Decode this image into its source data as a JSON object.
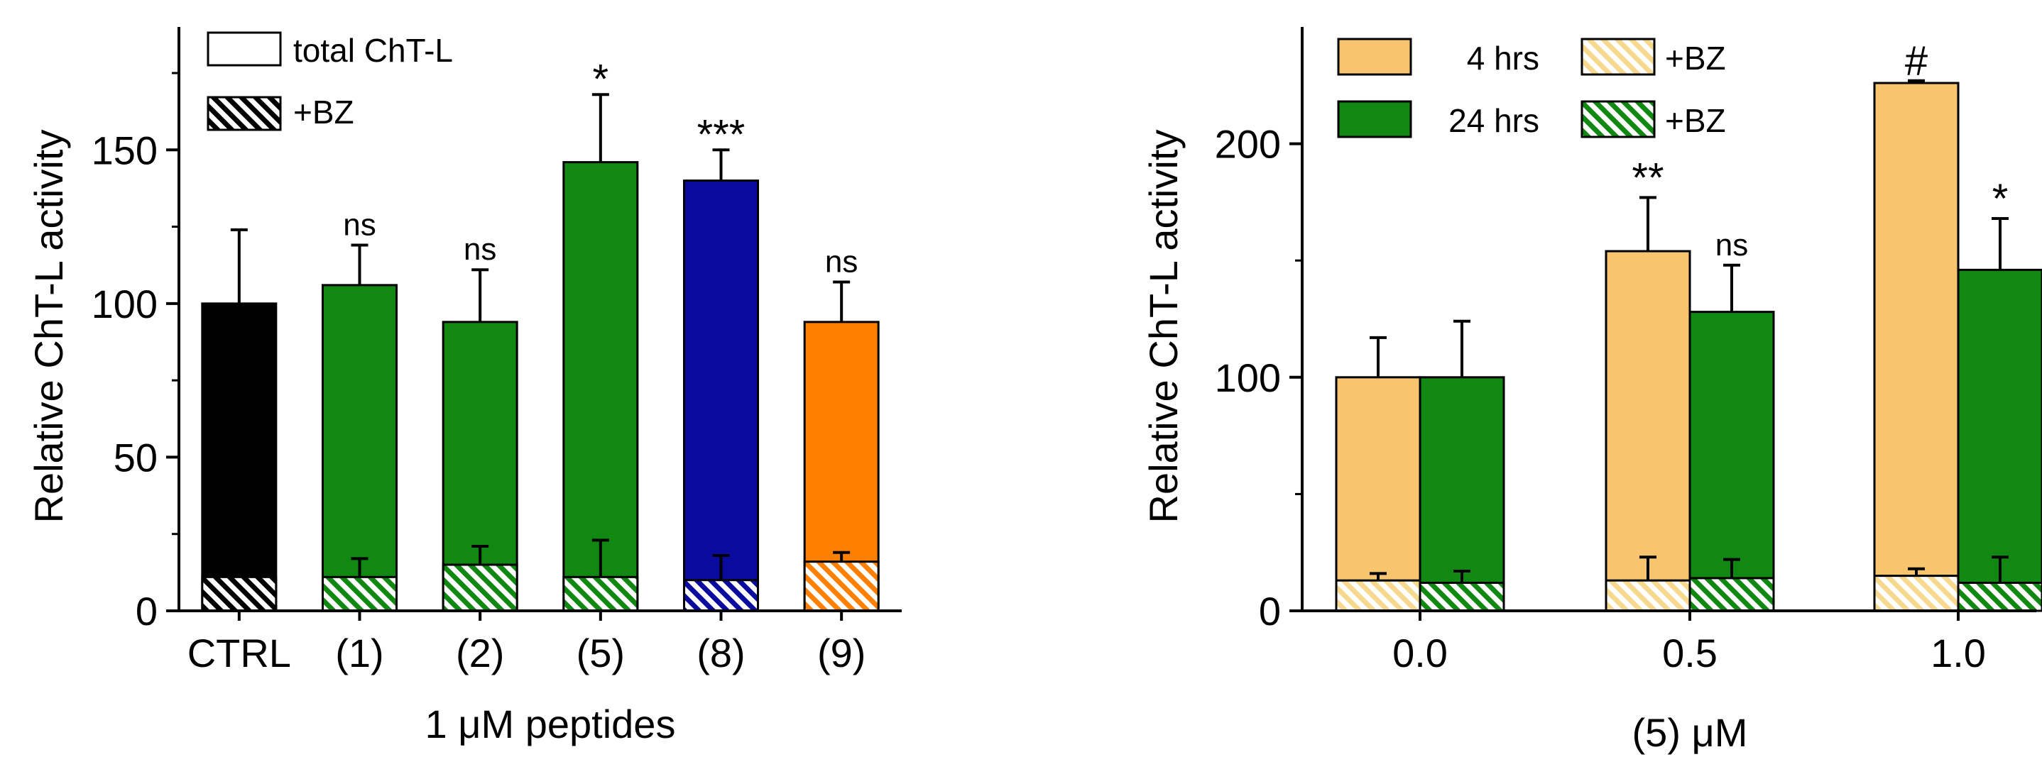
{
  "colors": {
    "ctrl": "#000000",
    "green": "#118811",
    "blue": "#0a0a9e",
    "orange": "#ff8000",
    "light_orange": "#f9c46e",
    "light_yellow": "#f6d98f",
    "axis": "#000000"
  },
  "chart_data": [
    {
      "type": "bar",
      "ylabel": "Relative ChT-L activity",
      "xlabel": "1 μM peptides",
      "ylim": [
        0,
        190
      ],
      "yticks": [
        0,
        50,
        100,
        150
      ],
      "categories": [
        "CTRL",
        "(1)",
        "(2)",
        "(5)",
        "(8)",
        "(9)"
      ],
      "bar_colors": [
        "ctrl",
        "green",
        "green",
        "green",
        "blue",
        "orange"
      ],
      "series": [
        {
          "name": "total ChT-L",
          "values": [
            100,
            106,
            94,
            146,
            140,
            94
          ],
          "errors": [
            24,
            13,
            17,
            22,
            10,
            13
          ]
        },
        {
          "name": "+BZ",
          "values": [
            11,
            11,
            15,
            11,
            10,
            16
          ],
          "errors": [
            6,
            6,
            6,
            12,
            8,
            3
          ]
        }
      ],
      "annotations": [
        "",
        "ns",
        "ns",
        "*",
        "***",
        "ns"
      ],
      "legend": [
        {
          "label": "total ChT-L",
          "style": "open"
        },
        {
          "label": "+BZ",
          "style": "hatched"
        }
      ]
    },
    {
      "type": "bar",
      "ylabel": "Relative ChT-L activity",
      "xlabel": "(5) μM",
      "ylim": [
        0,
        250
      ],
      "yticks": [
        0,
        100,
        200
      ],
      "categories": [
        "0.0",
        "0.5",
        "1.0"
      ],
      "series": [
        {
          "name": "4 hrs",
          "color": "light_orange",
          "values": [
            100,
            154,
            226
          ],
          "errors": [
            17,
            23,
            1
          ]
        },
        {
          "name": "24 hrs",
          "color": "green",
          "values": [
            100,
            128,
            146
          ],
          "errors": [
            24,
            20,
            22
          ]
        },
        {
          "name": "+BZ (4 hrs)",
          "color": "light_yellow",
          "values": [
            13,
            13,
            15
          ],
          "errors": [
            3,
            10,
            3
          ]
        },
        {
          "name": "+BZ (24 hrs)",
          "color": "green",
          "values": [
            12,
            14,
            12
          ],
          "errors": [
            5,
            8,
            11
          ]
        }
      ],
      "annotations": [
        [
          "",
          ""
        ],
        [
          "**",
          "ns"
        ],
        [
          "#",
          "*"
        ]
      ],
      "legend": [
        {
          "label": "4 hrs",
          "color": "light_orange",
          "style": "solid"
        },
        {
          "label": "+BZ",
          "color": "light_yellow",
          "style": "hatched"
        },
        {
          "label": "24 hrs",
          "color": "green",
          "style": "solid"
        },
        {
          "label": "+BZ",
          "color": "green",
          "style": "hatched"
        }
      ]
    }
  ]
}
